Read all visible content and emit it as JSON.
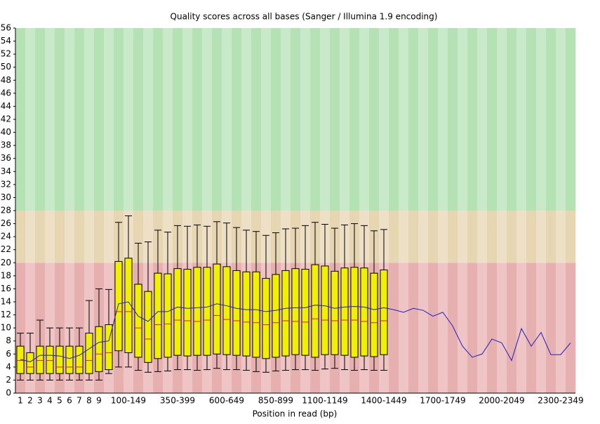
{
  "chart_data": {
    "type": "boxplot",
    "title": "Quality scores across all bases (Sanger / Illumina 1.9 encoding)",
    "x_label": "Position in read (bp)",
    "categories": [
      "1",
      "2",
      "3",
      "4",
      "5",
      "6",
      "7",
      "8",
      "9",
      null,
      null,
      "100-149",
      null,
      null,
      null,
      null,
      "350-399",
      null,
      null,
      null,
      null,
      "600-649",
      null,
      null,
      null,
      null,
      "850-899",
      null,
      null,
      null,
      null,
      "1100-1149",
      null,
      null,
      null,
      null,
      null,
      "1400-1449",
      null,
      null,
      null,
      null,
      null,
      "1700-1749",
      null,
      null,
      null,
      null,
      null,
      "2000-2049",
      null,
      null,
      null,
      null,
      null,
      "2300-2349",
      null
    ],
    "whisker_low": [
      2,
      2,
      2,
      2,
      2,
      2,
      2,
      2,
      2,
      3,
      4,
      4,
      3.5,
      3.2,
      3.3,
      3.4,
      3.6,
      3.6,
      3.5,
      3.6,
      3.8,
      3.6,
      3.6,
      3.5,
      3.3,
      3.2,
      3.4,
      3.5,
      3.6,
      3.6,
      3.5,
      3.7,
      3.8,
      3.6,
      3.5,
      3.6,
      3.5,
      3.5,
      null,
      null,
      null,
      null,
      null,
      null,
      null,
      null,
      null,
      null,
      null,
      null,
      null,
      null,
      null,
      null,
      null,
      null,
      null
    ],
    "q1": [
      3,
      3,
      3,
      3,
      3,
      3,
      3,
      3,
      3.3,
      3.6,
      6.5,
      6.2,
      5.5,
      4.7,
      5.3,
      5.5,
      5.8,
      5.7,
      5.8,
      5.8,
      6.0,
      5.9,
      5.8,
      5.7,
      5.5,
      5.3,
      5.5,
      5.7,
      5.9,
      5.8,
      5.5,
      5.9,
      5.9,
      5.8,
      5.5,
      5.7,
      5.6,
      5.9,
      null,
      null,
      null,
      null,
      null,
      null,
      null,
      null,
      null,
      null,
      null,
      null,
      null,
      null,
      null,
      null,
      null,
      null,
      null
    ],
    "median": [
      5,
      4,
      5,
      5,
      4,
      4,
      4,
      5,
      6,
      6.2,
      12.5,
      12.5,
      10,
      8.3,
      10.5,
      10.6,
      11.2,
      11.1,
      11.0,
      11.2,
      11.9,
      11.3,
      11.1,
      10.9,
      10.8,
      10.5,
      10.8,
      11.1,
      11.0,
      10.9,
      11.4,
      11.2,
      11.1,
      11.2,
      11.2,
      11.0,
      10.8,
      11.1,
      null,
      null,
      null,
      null,
      null,
      null,
      null,
      null,
      null,
      null,
      null,
      null,
      null,
      null,
      null,
      null,
      null,
      null,
      null
    ],
    "q3": [
      7.2,
      6.2,
      7.2,
      7.2,
      7.2,
      7.2,
      7.2,
      9.2,
      10.2,
      10.5,
      20.2,
      20.7,
      16.7,
      15.6,
      18.4,
      18.3,
      19.1,
      19.0,
      19.3,
      19.3,
      19.8,
      19.4,
      18.8,
      18.6,
      18.6,
      17.6,
      18.2,
      18.8,
      19.1,
      19.0,
      19.7,
      19.5,
      18.7,
      19.2,
      19.3,
      19.2,
      18.4,
      18.9,
      null,
      null,
      null,
      null,
      null,
      null,
      null,
      null,
      null,
      null,
      null,
      null,
      null,
      null,
      null,
      null,
      null,
      null,
      null
    ],
    "whisker_high": [
      9.2,
      9.2,
      11.2,
      10,
      10,
      10,
      10,
      14.2,
      16,
      15.9,
      26.2,
      27.2,
      23,
      23.2,
      25,
      24.7,
      25.7,
      25.6,
      25.8,
      25.6,
      26.3,
      26.1,
      25.4,
      25.0,
      24.8,
      24.2,
      24.6,
      25.2,
      25.3,
      25.7,
      26.2,
      25.9,
      25.3,
      25.8,
      26.0,
      25.7,
      24.9,
      25.1,
      null,
      null,
      null,
      null,
      null,
      null,
      null,
      null,
      null,
      null,
      null,
      null,
      null,
      null,
      null,
      null,
      null,
      null,
      null
    ],
    "mean": [
      5.2,
      4.8,
      5.8,
      5.8,
      5.7,
      5.3,
      5.8,
      6.8,
      7.8,
      8.0,
      13.7,
      14,
      11.8,
      11,
      12.5,
      12.5,
      13.2,
      13.0,
      13.1,
      13.2,
      13.7,
      13.4,
      13.0,
      12.8,
      12.8,
      12.5,
      12.7,
      13.0,
      13.1,
      13.1,
      13.5,
      13.4,
      13.0,
      13.2,
      13.3,
      13.2,
      12.8,
      13.1,
      12.8,
      12.4,
      13.0,
      12.7,
      11.8,
      12.4,
      10.3,
      7.2,
      5.5,
      6.0,
      8.3,
      7.7,
      5.0,
      9.9,
      7.2,
      9.3,
      5.9,
      5.9,
      7.7
    ],
    "box_color": "#f0f000",
    "median_color": "#e02020",
    "mean_color": "#2020c0",
    "bands": [
      {
        "from": 0,
        "to": 20,
        "colors": [
          "#e6b0b0",
          "#eec4c4"
        ]
      },
      {
        "from": 20,
        "to": 28,
        "colors": [
          "#e6d6b2",
          "#eee0c6"
        ]
      },
      {
        "from": 28,
        "to": 56,
        "colors": [
          "#b4e2b4",
          "#c9eac9"
        ]
      }
    ],
    "ylim": [
      0,
      56
    ],
    "yticks": [
      0,
      2,
      4,
      6,
      8,
      10,
      12,
      14,
      16,
      18,
      20,
      22,
      24,
      26,
      28,
      30,
      32,
      34,
      36,
      38,
      40,
      42,
      44,
      46,
      48,
      50,
      52,
      54,
      56
    ]
  }
}
